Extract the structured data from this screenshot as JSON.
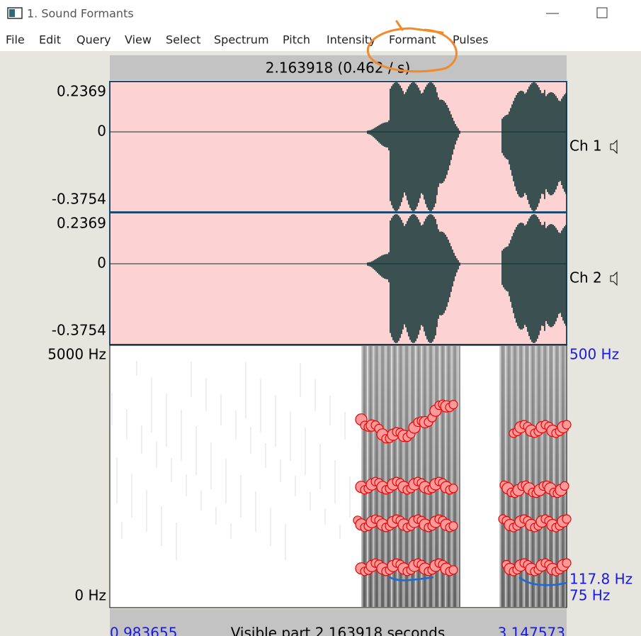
{
  "window": {
    "title": "1. Sound Formants"
  },
  "menu": [
    "File",
    "Edit",
    "Query",
    "View",
    "Select",
    "Spectrum",
    "Pitch",
    "Intensity",
    "Formant",
    "Pulses"
  ],
  "cursor_label": "2.163918 (0.462 / s)",
  "channels": [
    {
      "label": "Ch 1",
      "top": "0.2369",
      "zero": "0",
      "bottom": "-0.3754"
    },
    {
      "label": "Ch 2",
      "top": "0.2369",
      "zero": "0",
      "bottom": "-0.3754"
    }
  ],
  "spectrogram": {
    "top": "5000 Hz",
    "bottom": "0 Hz",
    "pitch_top": "500 Hz",
    "pitch_value": "117.8 Hz",
    "pitch_bottom": "75 Hz"
  },
  "footer": {
    "start": "0.983655",
    "visible": "Visible part 2.163918 seconds",
    "end": "3.147573"
  }
}
